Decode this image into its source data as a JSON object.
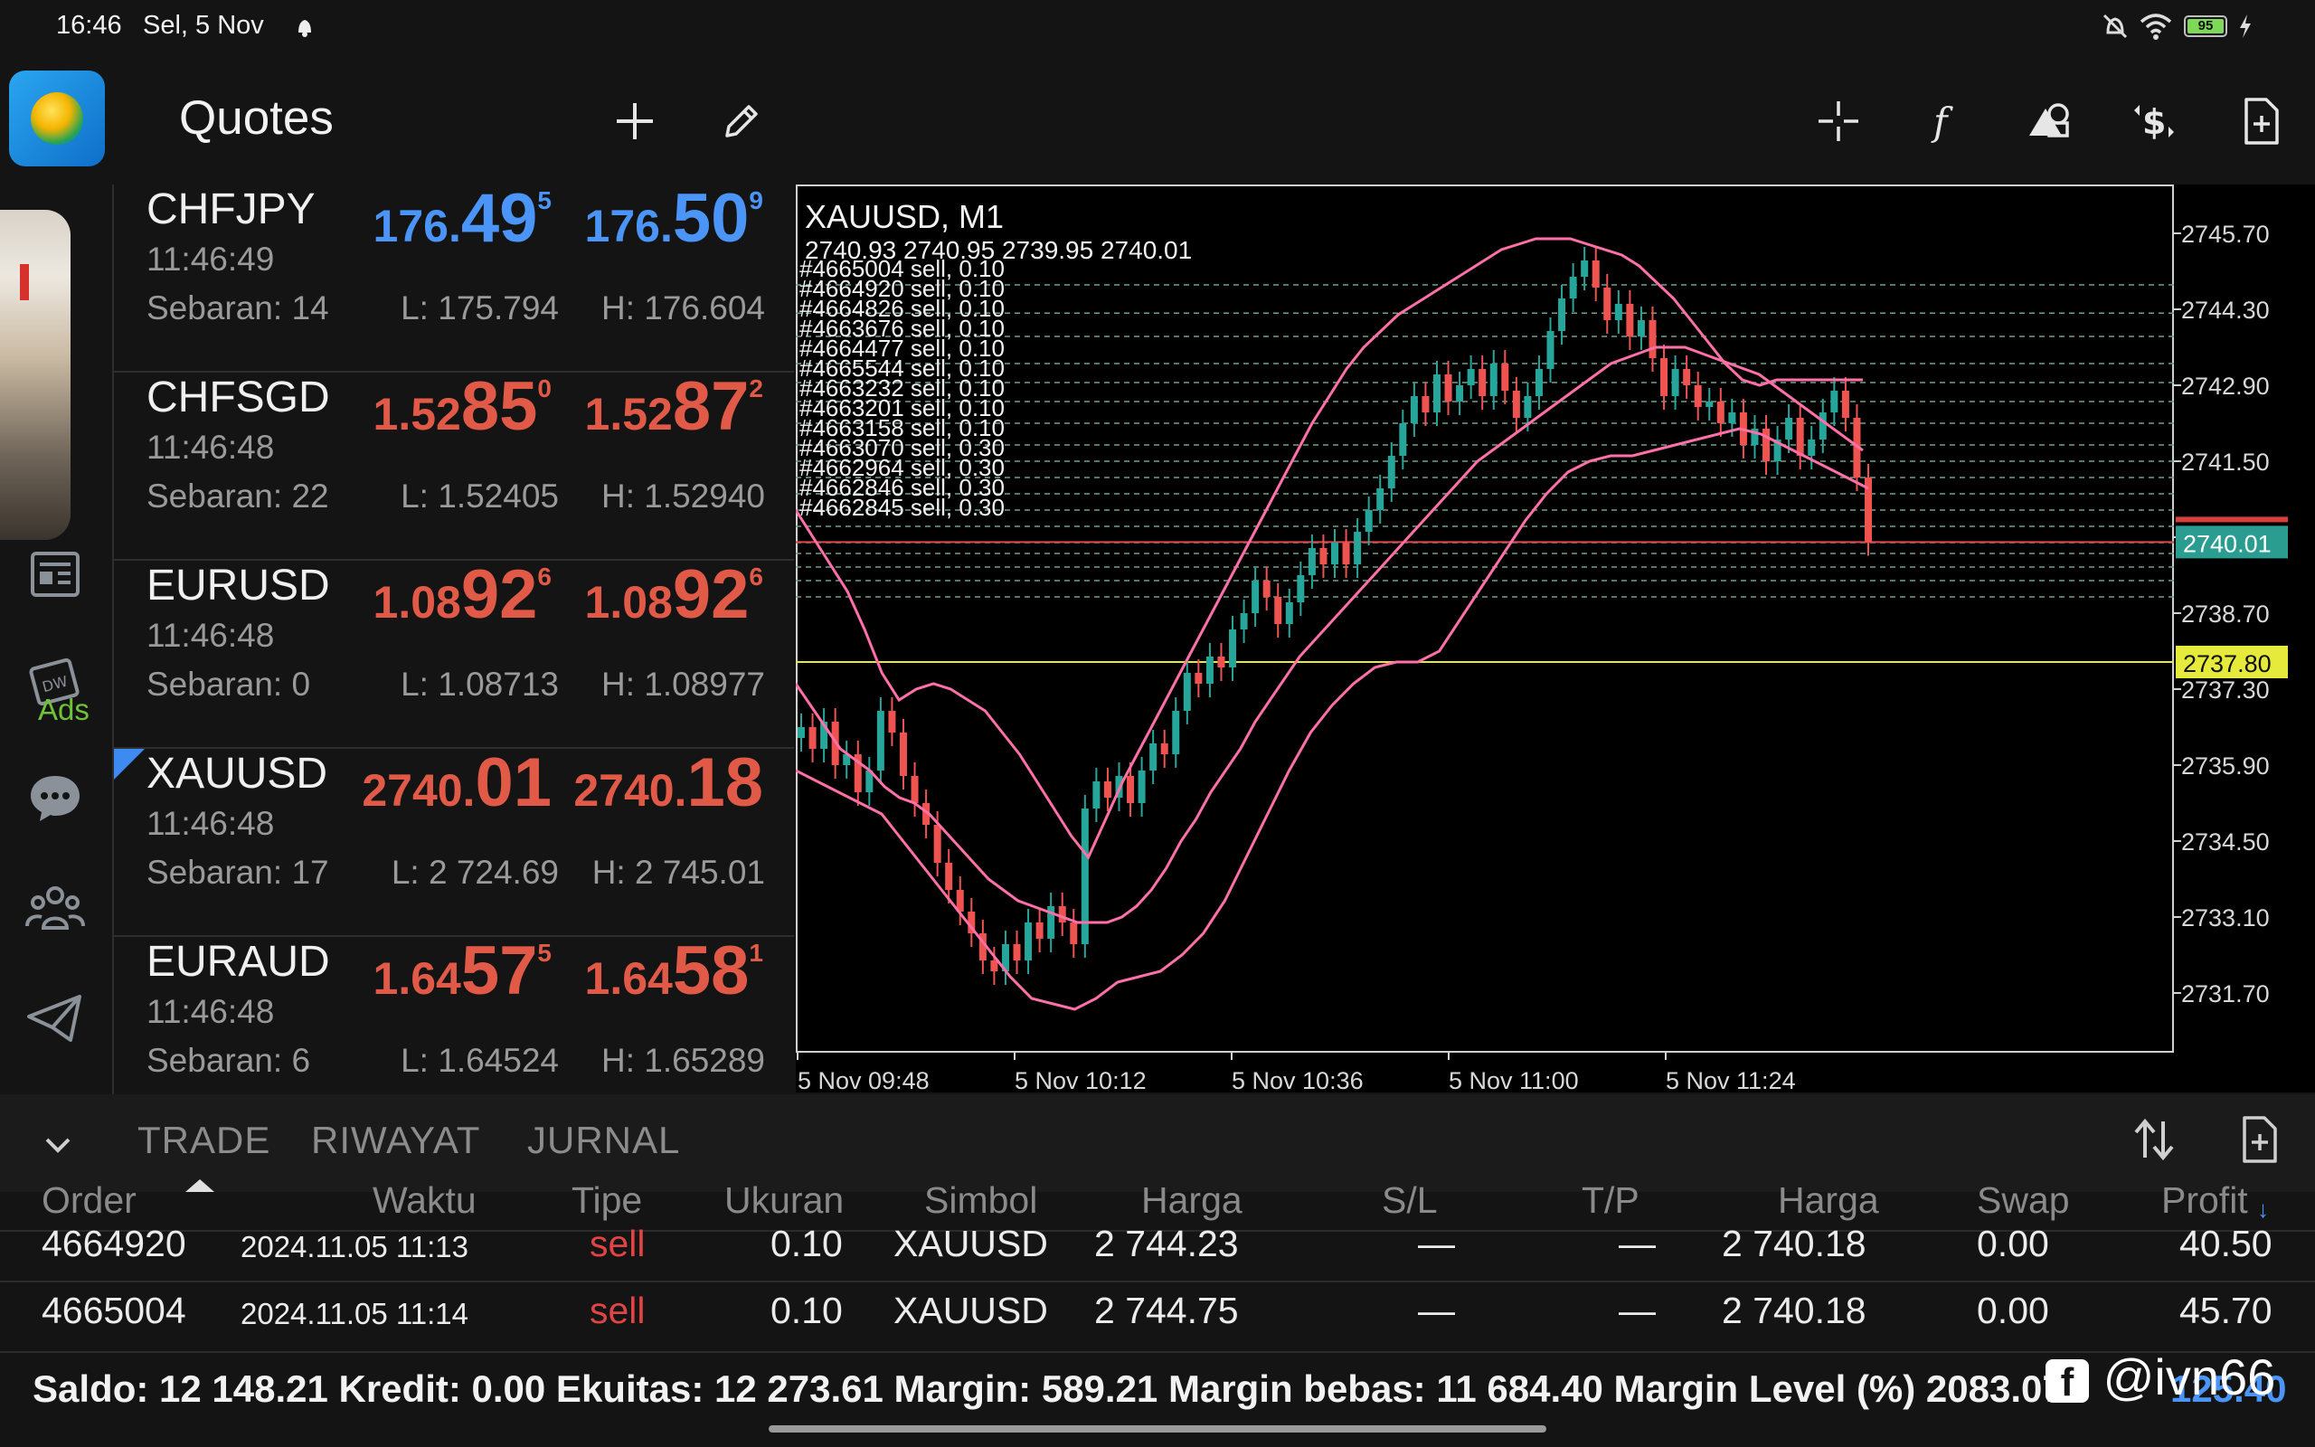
{
  "status_bar": {
    "time": "16:46",
    "date": "Sel, 5 Nov",
    "battery": "95"
  },
  "toolbar": {
    "title": "Quotes",
    "left_icons": [
      "plus-icon",
      "pencil-icon"
    ],
    "right_icons": [
      "crosshair-icon",
      "function-icon",
      "objects-icon",
      "dollar-trade-icon",
      "new-document-icon"
    ]
  },
  "sidebar": {
    "ads_label": "Ads",
    "icons": [
      "news-icon",
      "ads-calendar-icon",
      "chat-icon",
      "community-icon",
      "telegram-icon"
    ]
  },
  "quotes": [
    {
      "symbol": "CHFJPY",
      "time": "11:46:49",
      "spread": "Sebaran: 14",
      "low": "L: 175.794",
      "high": "H: 176.604",
      "bid_pre": "176.",
      "bid_big": "49",
      "bid_sup": "5",
      "ask_pre": "176.",
      "ask_big": "50",
      "ask_sup": "9",
      "direction": "up",
      "selected": false
    },
    {
      "symbol": "CHFSGD",
      "time": "11:46:48",
      "spread": "Sebaran: 22",
      "low": "L: 1.52405",
      "high": "H: 1.52940",
      "bid_pre": "1.52",
      "bid_big": "85",
      "bid_sup": "0",
      "ask_pre": "1.52",
      "ask_big": "87",
      "ask_sup": "2",
      "direction": "down",
      "selected": false
    },
    {
      "symbol": "EURUSD",
      "time": "11:46:48",
      "spread": "Sebaran: 0",
      "low": "L: 1.08713",
      "high": "H: 1.08977",
      "bid_pre": "1.08",
      "bid_big": "92",
      "bid_sup": "6",
      "ask_pre": "1.08",
      "ask_big": "92",
      "ask_sup": "6",
      "direction": "down",
      "selected": false
    },
    {
      "symbol": "XAUUSD",
      "time": "11:46:48",
      "spread": "Sebaran: 17",
      "low": "L: 2 724.69",
      "high": "H: 2 745.01",
      "bid_pre": "2740.",
      "bid_big": "01",
      "bid_sup": "",
      "ask_pre": "2740.",
      "ask_big": "18",
      "ask_sup": "",
      "direction": "down",
      "selected": true
    },
    {
      "symbol": "EURAUD",
      "time": "11:46:48",
      "spread": "Sebaran: 6",
      "low": "L: 1.64524",
      "high": "H: 1.65289",
      "bid_pre": "1.64",
      "bid_big": "57",
      "bid_sup": "5",
      "ask_pre": "1.64",
      "ask_big": "58",
      "ask_sup": "1",
      "direction": "down",
      "selected": false
    }
  ],
  "chart": {
    "title": "XAUUSD, M1",
    "ohlc": "2740.93 2740.95 2739.95 2740.01",
    "current_price_label": "2740.01",
    "level_label": "2737.80",
    "order_labels": [
      "#4665004 sell, 0.10",
      "#4664920 sell, 0.10",
      "#4664826 sell, 0.10",
      "#4663676 sell, 0.10",
      "#4664477 sell, 0.10",
      "#4665544 sell, 0.10",
      "#4663232 sell, 0.10",
      "#4663201 sell, 0.10",
      "#4663158 sell, 0.10",
      "#4663070 sell, 0.30",
      "#4662964 sell, 0.30",
      "#4662846 sell, 0.30",
      "#4662845 sell, 0.30"
    ]
  },
  "chart_data": {
    "type": "line",
    "title": "XAUUSD, M1",
    "xlabel": "",
    "ylabel": "",
    "x_ticks": [
      "5 Nov 09:48",
      "5 Nov 10:12",
      "5 Nov 10:36",
      "5 Nov 11:00",
      "5 Nov 11:24"
    ],
    "y_ticks": [
      "2745.70",
      "2744.30",
      "2742.90",
      "2741.50",
      "2740.10",
      "2738.70",
      "2737.30",
      "2735.90",
      "2734.50",
      "2733.10",
      "2731.70"
    ],
    "ylim": [
      2730.6,
      2746.6
    ],
    "current_price": 2740.01,
    "horizontal_level": 2737.8,
    "order_levels": [
      2744.75,
      2744.23,
      2743.8,
      2743.3,
      2742.95,
      2742.6,
      2742.2,
      2741.8,
      2741.5,
      2741.2,
      2740.9,
      2740.6,
      2740.3,
      2740.0,
      2739.8,
      2739.55,
      2739.3,
      2739.0
    ],
    "close": [
      2736.6,
      2736.2,
      2736.7,
      2735.9,
      2736.1,
      2735.4,
      2735.8,
      2736.9,
      2736.5,
      2735.7,
      2735.2,
      2734.8,
      2734.1,
      2733.6,
      2733.2,
      2732.8,
      2732.3,
      2732.1,
      2732.6,
      2732.3,
      2733.0,
      2732.7,
      2733.3,
      2733.0,
      2732.6,
      2735.1,
      2735.6,
      2735.3,
      2735.7,
      2735.2,
      2735.8,
      2736.3,
      2736.1,
      2736.9,
      2737.6,
      2737.4,
      2737.9,
      2737.7,
      2738.4,
      2738.7,
      2739.3,
      2739.0,
      2738.5,
      2738.9,
      2739.4,
      2739.9,
      2739.6,
      2740.0,
      2739.6,
      2740.2,
      2740.6,
      2741.0,
      2741.6,
      2742.2,
      2742.7,
      2742.4,
      2743.1,
      2742.6,
      2742.9,
      2743.2,
      2742.7,
      2743.3,
      2742.8,
      2742.3,
      2742.7,
      2743.2,
      2743.9,
      2744.5,
      2744.9,
      2745.2,
      2744.7,
      2744.1,
      2744.4,
      2743.8,
      2744.1,
      2743.4,
      2742.7,
      2743.2,
      2742.9,
      2742.5,
      2742.6,
      2742.2,
      2742.4,
      2741.8,
      2742.1,
      2741.5,
      2741.9,
      2742.3,
      2741.6,
      2741.9,
      2742.4,
      2742.8,
      2742.3,
      2741.2,
      2740.01
    ],
    "series": [
      {
        "name": "",
        "values": [
          2737.4,
          2737.0,
          2736.6,
          2736.2,
          2736.0,
          2735.8,
          2735.5,
          2735.3,
          2735.2,
          2735.0,
          2734.7,
          2734.4,
          2734.1,
          2733.8,
          2733.6,
          2733.4,
          2733.3,
          2733.2,
          2733.1,
          2733.0,
          2733.0,
          2733.0,
          2733.1,
          2733.3,
          2733.6,
          2734.0,
          2734.5,
          2734.9,
          2735.4,
          2735.8,
          2736.2,
          2736.7,
          2737.1,
          2737.5,
          2737.9,
          2738.2,
          2738.5,
          2738.8,
          2739.1,
          2739.4,
          2739.7,
          2740.0,
          2740.3,
          2740.6,
          2740.9,
          2741.2,
          2741.5,
          2741.7,
          2741.9,
          2742.1,
          2742.3,
          2742.5,
          2742.7,
          2742.9,
          2743.1,
          2743.3,
          2743.4,
          2743.5,
          2743.6,
          2743.6,
          2743.6,
          2743.5,
          2743.4,
          2743.3,
          2743.2,
          2743.1,
          2742.9,
          2742.7,
          2742.5,
          2742.3,
          2742.1,
          2741.9,
          2741.7
        ]
      },
      {
        "name": "",
        "values": [
          2740.6,
          2740.1,
          2739.6,
          2739.1,
          2738.4,
          2737.6,
          2737.1,
          2737.3,
          2737.4,
          2737.3,
          2737.1,
          2736.9,
          2736.5,
          2736.1,
          2735.6,
          2735.1,
          2734.6,
          2734.2,
          2734.9,
          2735.6,
          2736.2,
          2736.8,
          2737.4,
          2738.0,
          2738.6,
          2739.2,
          2739.8,
          2740.4,
          2741.0,
          2741.6,
          2742.2,
          2742.7,
          2743.2,
          2743.6,
          2743.9,
          2744.2,
          2744.4,
          2744.6,
          2744.8,
          2745.0,
          2745.2,
          2745.4,
          2745.5,
          2745.6,
          2745.6,
          2745.6,
          2745.5,
          2745.4,
          2745.3,
          2745.1,
          2744.8,
          2744.5,
          2744.1,
          2743.7,
          2743.3,
          2743.0,
          2742.9,
          2743.0,
          2743.0,
          2743.0,
          2743.0,
          2743.0,
          2743.0
        ]
      },
      {
        "name": "",
        "values": [
          2735.8,
          2735.6,
          2735.4,
          2735.2,
          2735.0,
          2734.5,
          2734.0,
          2733.5,
          2733.0,
          2732.5,
          2732.0,
          2731.6,
          2731.5,
          2731.4,
          2731.6,
          2731.9,
          2732.0,
          2732.1,
          2732.4,
          2732.8,
          2733.4,
          2734.2,
          2735.0,
          2735.8,
          2736.5,
          2737.0,
          2737.4,
          2737.7,
          2737.8,
          2737.8,
          2738.0,
          2738.6,
          2739.2,
          2739.8,
          2740.4,
          2740.9,
          2741.3,
          2741.5,
          2741.6,
          2741.6,
          2741.7,
          2741.8,
          2741.9,
          2742.0,
          2742.1,
          2742.0,
          2741.8,
          2741.6,
          2741.4,
          2741.2,
          2741.0
        ]
      }
    ],
    "grid": false
  },
  "trade_panel": {
    "tabs": [
      "TRADE",
      "RIWAYAT",
      "JURNAL"
    ],
    "columns": [
      "Order",
      "Waktu",
      "Tipe",
      "Ukuran",
      "Simbol",
      "Harga",
      "S/L",
      "T/P",
      "Harga",
      "Swap",
      "Profit"
    ],
    "rows": [
      {
        "order": "4664920",
        "time": "2024.11.05 11:13",
        "type": "sell",
        "size": "0.10",
        "symbol": "XAUUSD",
        "price": "2 744.23",
        "sl": "—",
        "tp": "—",
        "cur_price": "2 740.18",
        "swap": "0.00",
        "profit": "40.50"
      },
      {
        "order": "4665004",
        "time": "2024.11.05 11:14",
        "type": "sell",
        "size": "0.10",
        "symbol": "XAUUSD",
        "price": "2 744.75",
        "sl": "—",
        "tp": "—",
        "cur_price": "2 740.18",
        "swap": "0.00",
        "profit": "45.70"
      }
    ]
  },
  "footer": {
    "summary": "Saldo: 12 148.21 Kredit: 0.00 Ekuitas: 12 273.61 Margin: 589.21 Margin bebas: 11 684.40 Margin Level (%) 2083.07",
    "profit_total": "125.40",
    "watermark": "@ivn66"
  },
  "colors": {
    "up": "#4a95f7",
    "down": "#e15a47",
    "band": "#ff6fa8",
    "level": "#e6ea3a",
    "candle_up": "#26a69a",
    "candle_down": "#ef5350"
  }
}
